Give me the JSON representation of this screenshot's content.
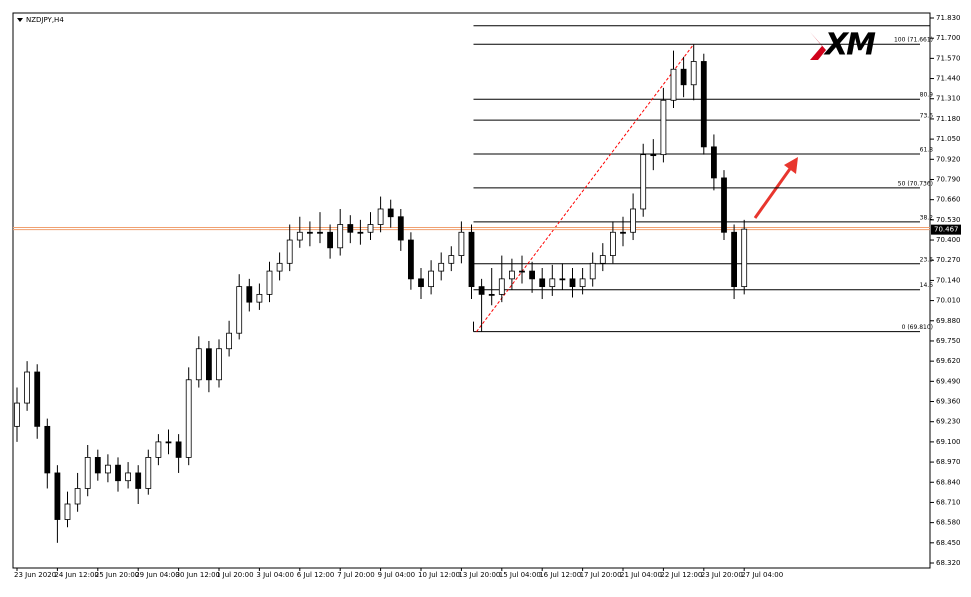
{
  "chart_data": {
    "type": "candlestick",
    "title": "NZDJPY,H4",
    "logo": "XM",
    "categories": [
      "23 Jun 2020",
      null,
      null,
      null,
      "24 Jun 12:00",
      null,
      null,
      null,
      "25 Jun 20:00",
      null,
      null,
      null,
      "29 Jun 04:00",
      null,
      null,
      null,
      "30 Jun 12:00",
      null,
      null,
      null,
      "1 Jul 20:00",
      null,
      null,
      null,
      "3 Jul 04:00",
      null,
      null,
      null,
      "6 Jul 12:00",
      null,
      null,
      null,
      "7 Jul 20:00",
      null,
      null,
      null,
      "9 Jul 04:00",
      null,
      null,
      null,
      "10 Jul 12:00",
      null,
      null,
      null,
      "13 Jul 20:00",
      null,
      null,
      null,
      "15 Jul 04:00",
      null,
      null,
      null,
      "16 Jul 12:00",
      null,
      null,
      null,
      "17 Jul 20:00",
      null,
      null,
      null,
      "21 Jul 04:00",
      null,
      null,
      null,
      "22 Jul 12:00",
      null,
      null,
      null,
      "23 Jul 20:00",
      null,
      null,
      null,
      "27 Jul 04:00"
    ],
    "open": [
      69.2,
      69.35,
      69.55,
      69.2,
      68.9,
      68.6,
      68.7,
      68.8,
      69.0,
      68.9,
      68.95,
      68.85,
      68.9,
      68.8,
      69.0,
      69.1,
      69.1,
      69.0,
      69.5,
      69.7,
      69.5,
      69.7,
      69.8,
      70.1,
      70.0,
      70.05,
      70.2,
      70.25,
      70.4,
      70.45,
      70.45,
      70.45,
      70.35,
      70.5,
      70.45,
      70.45,
      70.5,
      70.6,
      70.55,
      70.4,
      70.15,
      70.1,
      70.2,
      70.25,
      70.3,
      70.45,
      70.1,
      70.05,
      70.05,
      70.15,
      70.2,
      70.2,
      70.15,
      70.1,
      70.15,
      70.15,
      70.1,
      70.15,
      70.25,
      70.3,
      70.45,
      70.45,
      70.6,
      70.95,
      70.95,
      71.3,
      71.5,
      71.4,
      71.55,
      71.0,
      70.8,
      70.45,
      70.1
    ],
    "high": [
      69.45,
      69.62,
      69.6,
      69.25,
      68.95,
      68.78,
      68.9,
      69.08,
      69.05,
      69.02,
      69.0,
      68.97,
      68.95,
      69.05,
      69.15,
      69.18,
      69.15,
      69.58,
      69.78,
      69.75,
      69.76,
      69.88,
      70.18,
      70.15,
      70.12,
      70.26,
      70.32,
      70.5,
      70.55,
      70.52,
      70.58,
      70.5,
      70.6,
      70.56,
      70.53,
      70.58,
      70.68,
      70.66,
      70.6,
      70.45,
      70.22,
      70.27,
      70.32,
      70.36,
      70.52,
      70.5,
      70.15,
      70.22,
      70.3,
      70.28,
      70.3,
      70.26,
      70.22,
      70.24,
      70.25,
      70.22,
      70.22,
      70.32,
      70.38,
      70.52,
      70.55,
      70.7,
      71.02,
      71.05,
      71.38,
      71.62,
      71.58,
      71.661,
      71.6,
      71.08,
      70.85,
      70.5,
      70.53
    ],
    "low": [
      69.1,
      69.3,
      69.12,
      68.8,
      68.45,
      68.55,
      68.65,
      68.75,
      68.85,
      68.84,
      68.78,
      68.8,
      68.7,
      68.76,
      68.95,
      69.02,
      68.9,
      68.95,
      69.45,
      69.42,
      69.45,
      69.65,
      69.76,
      69.94,
      69.95,
      70.0,
      70.14,
      70.2,
      70.35,
      70.36,
      70.38,
      70.28,
      70.3,
      70.38,
      70.37,
      70.4,
      70.45,
      70.48,
      70.33,
      70.08,
      70.02,
      70.05,
      70.14,
      70.2,
      70.25,
      70.02,
      69.81,
      69.98,
      70.0,
      70.08,
      70.12,
      70.06,
      70.02,
      70.04,
      70.08,
      70.03,
      70.05,
      70.1,
      70.2,
      70.25,
      70.36,
      70.4,
      70.55,
      70.85,
      70.9,
      71.25,
      71.32,
      71.3,
      70.95,
      70.72,
      70.4,
      70.02,
      70.05
    ],
    "close": [
      69.35,
      69.55,
      69.2,
      68.9,
      68.6,
      68.7,
      68.8,
      69.0,
      68.9,
      68.95,
      68.85,
      68.9,
      68.8,
      69.0,
      69.1,
      69.1,
      69.0,
      69.5,
      69.7,
      69.5,
      69.7,
      69.8,
      70.1,
      70.0,
      70.05,
      70.2,
      70.25,
      70.4,
      70.45,
      70.45,
      70.45,
      70.35,
      70.5,
      70.45,
      70.45,
      70.5,
      70.6,
      70.55,
      70.4,
      70.15,
      70.1,
      70.2,
      70.25,
      70.3,
      70.45,
      70.1,
      70.05,
      70.05,
      70.15,
      70.2,
      70.2,
      70.15,
      70.1,
      70.15,
      70.15,
      70.1,
      70.15,
      70.25,
      70.3,
      70.45,
      70.45,
      70.6,
      70.95,
      70.95,
      71.3,
      71.5,
      71.4,
      71.55,
      71.0,
      70.8,
      70.45,
      70.1,
      70.47
    ],
    "ylim": [
      68.32,
      71.83
    ],
    "yticks": [
      {
        "value": 71.83,
        "label": "71.830"
      },
      {
        "value": 71.7,
        "label": "71.700"
      },
      {
        "value": 71.57,
        "label": "71.570"
      },
      {
        "value": 71.44,
        "label": "71.440"
      },
      {
        "value": 71.31,
        "label": "71.310"
      },
      {
        "value": 71.18,
        "label": "71.180"
      },
      {
        "value": 71.05,
        "label": "71.050"
      },
      {
        "value": 70.92,
        "label": "70.920"
      },
      {
        "value": 70.79,
        "label": "70.790"
      },
      {
        "value": 70.66,
        "label": "70.660"
      },
      {
        "value": 70.53,
        "label": "70.530"
      },
      {
        "value": 70.4,
        "label": "70.400"
      },
      {
        "value": 70.27,
        "label": "70.270"
      },
      {
        "value": 70.14,
        "label": "70.140"
      },
      {
        "value": 70.01,
        "label": "70.010"
      },
      {
        "value": 69.88,
        "label": "69.880"
      },
      {
        "value": 69.75,
        "label": "69.750"
      },
      {
        "value": 69.62,
        "label": "69.620"
      },
      {
        "value": 69.49,
        "label": "69.490"
      },
      {
        "value": 69.36,
        "label": "69.360"
      },
      {
        "value": 69.23,
        "label": "69.230"
      },
      {
        "value": 69.1,
        "label": "69.100"
      },
      {
        "value": 68.97,
        "label": "68.970"
      },
      {
        "value": 68.84,
        "label": "68.840"
      },
      {
        "value": 68.71,
        "label": "68.710"
      },
      {
        "value": 68.58,
        "label": "68.580"
      },
      {
        "value": 68.45,
        "label": "68.450"
      },
      {
        "value": 68.32,
        "label": "68.320"
      }
    ],
    "fib": {
      "levels": [
        {
          "value": 71.661,
          "label": "100 (71.661)"
        },
        {
          "value": 71.307,
          "label": "80.9"
        },
        {
          "value": 71.172,
          "label": "73.6"
        },
        {
          "value": 70.954,
          "label": "61.8"
        },
        {
          "value": 70.736,
          "label": "50 (70.736)"
        },
        {
          "value": 70.517,
          "label": "38.2"
        },
        {
          "value": 70.247,
          "label": "23.6"
        },
        {
          "value": 70.08,
          "label": "14.6"
        },
        {
          "value": 69.81,
          "label": "0 (69.810)"
        }
      ],
      "extra_lines": [
        71.78
      ],
      "color": "#000000",
      "trend_color": "#ff0000"
    },
    "price_lines": [
      70.481,
      {
        "value": 70.467,
        "label": "70.467"
      }
    ],
    "price_color": "#f0a070"
  }
}
